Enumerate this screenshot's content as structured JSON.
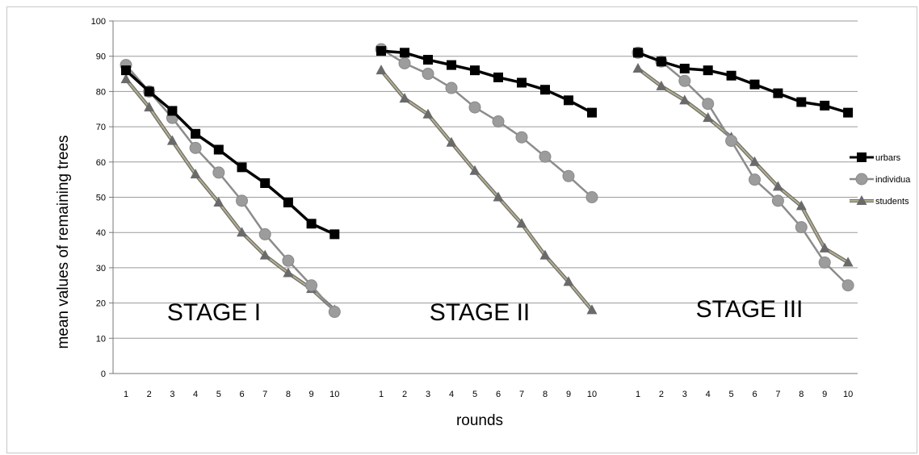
{
  "chart_data": {
    "type": "line",
    "xlabel": "rounds",
    "ylabel": "mean values of remaining trees",
    "ylim": [
      0,
      100
    ],
    "yticks": [
      "0",
      "10",
      "20",
      "30",
      "40",
      "50",
      "60",
      "70",
      "80",
      "90",
      "100"
    ],
    "grid": true,
    "legend_position": "right",
    "legend": [
      "urbars",
      "individua",
      "students"
    ],
    "series_styles": [
      {
        "color": "#000000",
        "marker": "square"
      },
      {
        "color": "#8c8c8c",
        "marker": "circle"
      },
      {
        "color": "#b5b08a",
        "marker": "triangle",
        "marker_color": "#6a6a6a"
      }
    ],
    "panels": [
      {
        "stage_label": "STAGE I",
        "x": [
          "1",
          "2",
          "3",
          "4",
          "5",
          "6",
          "7",
          "8",
          "9",
          "10"
        ],
        "series": [
          {
            "name": "urbars",
            "values": [
              86,
              80,
              74.5,
              68,
              63.5,
              58.5,
              54,
              48.5,
              42.5,
              39.5
            ]
          },
          {
            "name": "individua",
            "values": [
              87.5,
              80,
              72.5,
              64,
              57,
              49,
              39.5,
              32,
              25,
              17.5
            ]
          },
          {
            "name": "students",
            "values": [
              83.5,
              75.5,
              66,
              56.5,
              48.5,
              40,
              33.5,
              28.5,
              24,
              18
            ]
          }
        ]
      },
      {
        "stage_label": "STAGE II",
        "x": [
          "1",
          "2",
          "3",
          "4",
          "5",
          "6",
          "7",
          "8",
          "9",
          "10"
        ],
        "series": [
          {
            "name": "urbars",
            "values": [
              91.5,
              91,
              89,
              87.5,
              86,
              84,
              82.5,
              80.5,
              77.5,
              74
            ]
          },
          {
            "name": "individua",
            "values": [
              92,
              88,
              85,
              81,
              75.5,
              71.5,
              67,
              61.5,
              56,
              50
            ]
          },
          {
            "name": "students",
            "values": [
              86,
              78,
              73.5,
              65.5,
              57.5,
              50,
              42.5,
              33.5,
              26,
              18
            ]
          }
        ]
      },
      {
        "stage_label": "STAGE III",
        "x": [
          "1",
          "2",
          "3",
          "4",
          "5",
          "6",
          "7",
          "8",
          "9",
          "10"
        ],
        "series": [
          {
            "name": "urbars",
            "values": [
              91,
              88.5,
              86.5,
              86,
              84.5,
              82,
              79.5,
              77,
              76,
              74
            ]
          },
          {
            "name": "individua",
            "values": [
              91,
              88.5,
              83,
              76.5,
              66,
              55,
              49,
              41.5,
              31.5,
              25
            ]
          },
          {
            "name": "students",
            "values": [
              86.5,
              81.5,
              77.5,
              72.5,
              67,
              60,
              53,
              47.5,
              35.5,
              31.5
            ]
          }
        ]
      }
    ]
  }
}
